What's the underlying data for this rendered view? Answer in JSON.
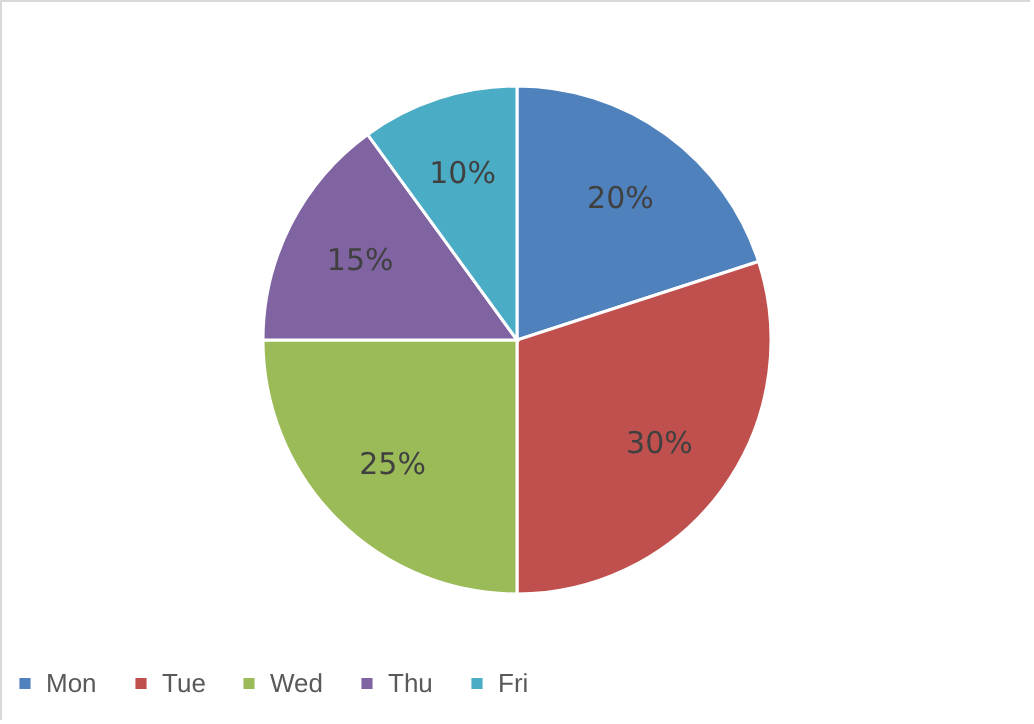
{
  "chart_data": {
    "type": "pie",
    "categories": [
      "Mon",
      "Tue",
      "Wed",
      "Thu",
      "Fri"
    ],
    "values": [
      20,
      30,
      25,
      15,
      10
    ],
    "colors": [
      "#4f81bd",
      "#c0504d",
      "#9bbb59",
      "#8064a2",
      "#4bacc6"
    ],
    "value_labels": [
      "20%",
      "30%",
      "25%",
      "15%",
      "10%"
    ],
    "legend": "bottom"
  }
}
